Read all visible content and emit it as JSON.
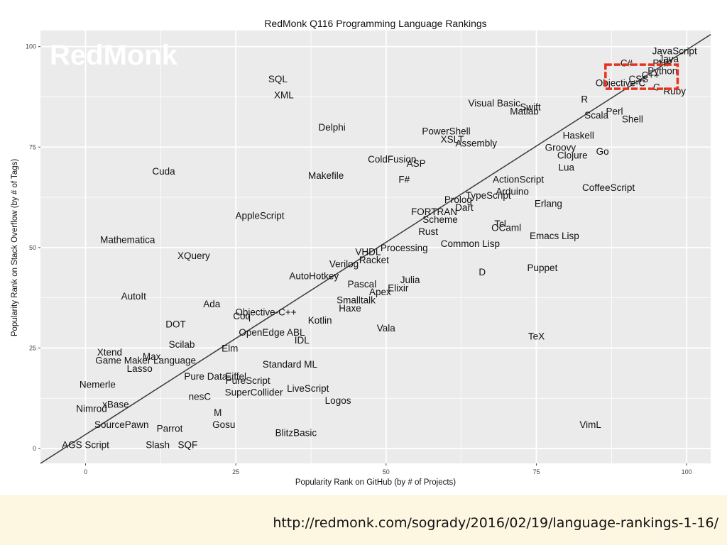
{
  "footer": {
    "url": "http://redmonk.com/sogrady/2016/02/19/language-rankings-1-16/"
  },
  "chart_data": {
    "type": "scatter",
    "title": "RedMonk Q116 Programming Language Rankings",
    "watermark": "RedMonk",
    "xlabel": "Popularity Rank on GitHub (by # of Projects)",
    "ylabel": "Popularity Rank on Stack Overflow (by # of Tags)",
    "xlim": [
      -7.5,
      104
    ],
    "ylim": [
      -3.7,
      104
    ],
    "xticks": [
      0,
      25,
      50,
      75,
      100
    ],
    "yticks": [
      0,
      25,
      50,
      75,
      100
    ],
    "grid": true,
    "panel_color": "#ebebeb",
    "grid_color": "#ffffff",
    "trend_line": {
      "from": [
        -7.5,
        -3.7
      ],
      "to": [
        104,
        103
      ]
    },
    "highlight_box": {
      "x": [
        86.5,
        98.5
      ],
      "y": [
        89.5,
        95.5
      ],
      "color": "#e8321f"
    },
    "points": [
      {
        "label": "JavaScript",
        "x": 98,
        "y": 99
      },
      {
        "label": "Java",
        "x": 97,
        "y": 97
      },
      {
        "label": "PHP",
        "x": 96,
        "y": 96
      },
      {
        "label": "Python",
        "x": 96,
        "y": 94
      },
      {
        "label": "C#",
        "x": 90,
        "y": 96
      },
      {
        "label": "C++",
        "x": 94,
        "y": 93
      },
      {
        "label": "CSS",
        "x": 92,
        "y": 92
      },
      {
        "label": "C",
        "x": 95,
        "y": 90
      },
      {
        "label": "Objective-C",
        "x": 89,
        "y": 91
      },
      {
        "label": "Ruby",
        "x": 98,
        "y": 89
      },
      {
        "label": "R",
        "x": 83,
        "y": 87
      },
      {
        "label": "Visual Basic",
        "x": 68,
        "y": 86
      },
      {
        "label": "Swift",
        "x": 74,
        "y": 85
      },
      {
        "label": "Matlab",
        "x": 73,
        "y": 84
      },
      {
        "label": "Scala",
        "x": 85,
        "y": 83
      },
      {
        "label": "Perl",
        "x": 88,
        "y": 84
      },
      {
        "label": "Shell",
        "x": 91,
        "y": 82
      },
      {
        "label": "SQL",
        "x": 32,
        "y": 92
      },
      {
        "label": "XML",
        "x": 33,
        "y": 88
      },
      {
        "label": "Delphi",
        "x": 41,
        "y": 80
      },
      {
        "label": "PowerShell",
        "x": 60,
        "y": 79
      },
      {
        "label": "XSLT",
        "x": 61,
        "y": 77
      },
      {
        "label": "Assembly",
        "x": 65,
        "y": 76
      },
      {
        "label": "Haskell",
        "x": 82,
        "y": 78
      },
      {
        "label": "Groovy",
        "x": 79,
        "y": 75
      },
      {
        "label": "Clojure",
        "x": 81,
        "y": 73
      },
      {
        "label": "Go",
        "x": 86,
        "y": 74
      },
      {
        "label": "Lua",
        "x": 80,
        "y": 70
      },
      {
        "label": "ColdFusion",
        "x": 51,
        "y": 72
      },
      {
        "label": "ASP",
        "x": 55,
        "y": 71
      },
      {
        "label": "Cuda",
        "x": 13,
        "y": 69
      },
      {
        "label": "Makefile",
        "x": 40,
        "y": 68
      },
      {
        "label": "F#",
        "x": 53,
        "y": 67
      },
      {
        "label": "ActionScript",
        "x": 72,
        "y": 67
      },
      {
        "label": "CoffeeScript",
        "x": 87,
        "y": 65
      },
      {
        "label": "Arduino",
        "x": 71,
        "y": 64
      },
      {
        "label": "TypeScript",
        "x": 67,
        "y": 63
      },
      {
        "label": "Prolog",
        "x": 62,
        "y": 62
      },
      {
        "label": "Dart",
        "x": 63,
        "y": 60
      },
      {
        "label": "Erlang",
        "x": 77,
        "y": 61
      },
      {
        "label": "FORTRAN",
        "x": 58,
        "y": 59
      },
      {
        "label": "Scheme",
        "x": 59,
        "y": 57
      },
      {
        "label": "AppleScript",
        "x": 29,
        "y": 58
      },
      {
        "label": "Tcl",
        "x": 69,
        "y": 56
      },
      {
        "label": "OCaml",
        "x": 70,
        "y": 55
      },
      {
        "label": "Rust",
        "x": 57,
        "y": 54
      },
      {
        "label": "Emacs Lisp",
        "x": 78,
        "y": 53
      },
      {
        "label": "Mathematica",
        "x": 7,
        "y": 52
      },
      {
        "label": "Common Lisp",
        "x": 64,
        "y": 51
      },
      {
        "label": "Processing",
        "x": 53,
        "y": 50
      },
      {
        "label": "VHDL",
        "x": 47,
        "y": 49
      },
      {
        "label": "Racket",
        "x": 48,
        "y": 47
      },
      {
        "label": "XQuery",
        "x": 18,
        "y": 48
      },
      {
        "label": "Verilog",
        "x": 43,
        "y": 46
      },
      {
        "label": "Puppet",
        "x": 76,
        "y": 45
      },
      {
        "label": "D",
        "x": 66,
        "y": 44
      },
      {
        "label": "AutoHotkey",
        "x": 38,
        "y": 43
      },
      {
        "label": "Julia",
        "x": 54,
        "y": 42
      },
      {
        "label": "Pascal",
        "x": 46,
        "y": 41
      },
      {
        "label": "Elixir",
        "x": 52,
        "y": 40
      },
      {
        "label": "Apex",
        "x": 49,
        "y": 39
      },
      {
        "label": "AutoIt",
        "x": 8,
        "y": 38
      },
      {
        "label": "Smalltalk",
        "x": 45,
        "y": 37
      },
      {
        "label": "Ada",
        "x": 21,
        "y": 36
      },
      {
        "label": "Haxe",
        "x": 44,
        "y": 35
      },
      {
        "label": "Objective-C++",
        "x": 30,
        "y": 34
      },
      {
        "label": "Coq",
        "x": 26,
        "y": 33
      },
      {
        "label": "Kotlin",
        "x": 39,
        "y": 32
      },
      {
        "label": "DOT",
        "x": 15,
        "y": 31
      },
      {
        "label": "Vala",
        "x": 50,
        "y": 30
      },
      {
        "label": "OpenEdge ABL",
        "x": 31,
        "y": 29
      },
      {
        "label": "TeX",
        "x": 75,
        "y": 28
      },
      {
        "label": "IDL",
        "x": 36,
        "y": 27
      },
      {
        "label": "Scilab",
        "x": 16,
        "y": 26
      },
      {
        "label": "Elm",
        "x": 24,
        "y": 25
      },
      {
        "label": "Xtend",
        "x": 4,
        "y": 24
      },
      {
        "label": "Max",
        "x": 11,
        "y": 23
      },
      {
        "label": "Game Maker Language",
        "x": 10,
        "y": 22
      },
      {
        "label": "Standard ML",
        "x": 34,
        "y": 21
      },
      {
        "label": "Lasso",
        "x": 9,
        "y": 20
      },
      {
        "label": "Pure Data",
        "x": 20,
        "y": 18
      },
      {
        "label": "Eiffel",
        "x": 25,
        "y": 18
      },
      {
        "label": "PureScript",
        "x": 27,
        "y": 17
      },
      {
        "label": "Nemerle",
        "x": 2,
        "y": 16
      },
      {
        "label": "LiveScript",
        "x": 37,
        "y": 15
      },
      {
        "label": "SuperCollider",
        "x": 28,
        "y": 14
      },
      {
        "label": "nesC",
        "x": 19,
        "y": 13
      },
      {
        "label": "Logos",
        "x": 42,
        "y": 12
      },
      {
        "label": "Nimrod",
        "x": 1,
        "y": 10
      },
      {
        "label": "xBase",
        "x": 5,
        "y": 11
      },
      {
        "label": "M",
        "x": 22,
        "y": 9
      },
      {
        "label": "SourcePawn",
        "x": 6,
        "y": 6
      },
      {
        "label": "Gosu",
        "x": 23,
        "y": 6
      },
      {
        "label": "VimL",
        "x": 84,
        "y": 6
      },
      {
        "label": "Parrot",
        "x": 14,
        "y": 5
      },
      {
        "label": "BlitzBasic",
        "x": 35,
        "y": 4
      },
      {
        "label": "AGS Script",
        "x": 0,
        "y": 1
      },
      {
        "label": "Slash",
        "x": 12,
        "y": 1
      },
      {
        "label": "SQF",
        "x": 17,
        "y": 1
      }
    ]
  }
}
